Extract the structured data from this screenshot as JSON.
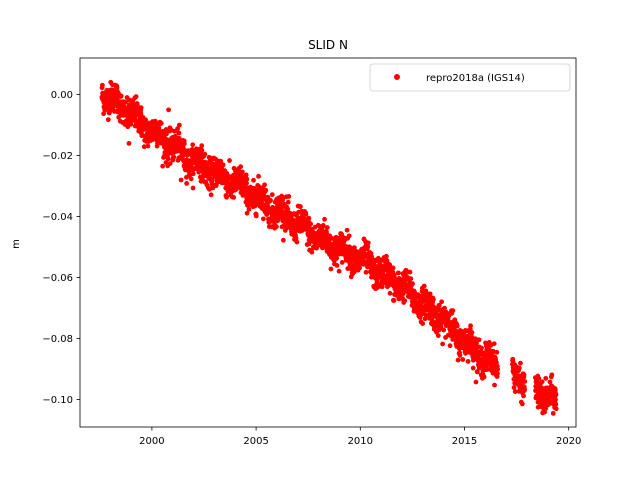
{
  "chart_data": {
    "type": "scatter",
    "title": "SLID N",
    "xlabel": "",
    "ylabel": "m",
    "xlim": [
      1996.55,
      2020.35
    ],
    "ylim": [
      -0.109,
      0.012
    ],
    "xticks": [
      2000,
      2005,
      2010,
      2015,
      2020
    ],
    "xtick_labels": [
      "2000",
      "2005",
      "2010",
      "2015",
      "2020"
    ],
    "yticks": [
      0.0,
      -0.02,
      -0.04,
      -0.06,
      -0.08,
      -0.1
    ],
    "ytick_labels": [
      "0.00",
      "−0.02",
      "−0.04",
      "−0.06",
      "−0.08",
      "−0.10"
    ],
    "legend_position": "top-right",
    "grid": false,
    "series": [
      {
        "name": "repro2018a (IGS14)",
        "color": "#ff0000",
        "marker": "circle",
        "x_range": [
          1997.6,
          2019.4
        ],
        "trend": [
          [
            1997.6,
            0.001
          ],
          [
            2000.0,
            -0.012
          ],
          [
            2002.0,
            -0.022
          ],
          [
            2004.0,
            -0.029
          ],
          [
            2006.0,
            -0.038
          ],
          [
            2008.0,
            -0.047
          ],
          [
            2010.0,
            -0.054
          ],
          [
            2012.0,
            -0.063
          ],
          [
            2014.0,
            -0.074
          ],
          [
            2015.0,
            -0.081
          ],
          [
            2016.0,
            -0.087
          ],
          [
            2017.4,
            -0.092
          ],
          [
            2018.5,
            -0.097
          ],
          [
            2019.4,
            -0.101
          ]
        ],
        "gaps": [
          [
            2016.6,
            2017.3
          ],
          [
            2017.9,
            2018.4
          ]
        ],
        "scatter_sd": 0.0025,
        "outliers": [
          [
            1998.9,
            -0.016
          ],
          [
            2000.8,
            -0.005
          ],
          [
            2001.4,
            -0.028
          ],
          [
            2019.4,
            -0.103
          ]
        ]
      }
    ]
  }
}
